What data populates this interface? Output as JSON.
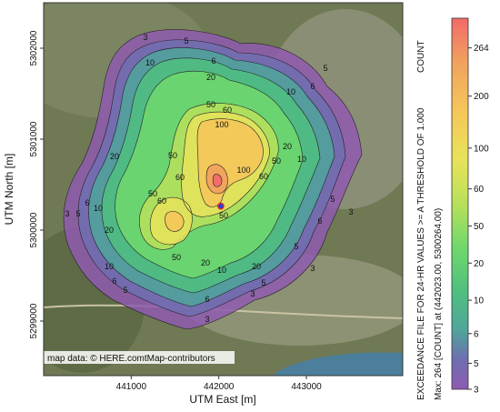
{
  "chart_data": {
    "type": "heatmap",
    "title": "",
    "xlabel": "UTM East [m]",
    "ylabel": "UTM North [m]",
    "x_ticks": [
      "441000",
      "442000",
      "443000"
    ],
    "y_ticks": [
      "5302000",
      "5301000",
      "5300000",
      "5299000"
    ],
    "xlim": [
      440000,
      444100
    ],
    "ylim": [
      5298400,
      5302500
    ],
    "contour_levels": [
      3,
      5,
      6,
      10,
      20,
      50,
      60,
      100,
      200,
      264
    ],
    "contour_labels": [
      "3",
      "5",
      "6",
      "10",
      "20",
      "50",
      "60",
      "100"
    ],
    "colorbar": {
      "title": "COUNT",
      "ticks": [
        "264",
        "200",
        "100",
        "60",
        "50",
        "20",
        "10",
        "6",
        "5",
        "3"
      ],
      "colors": [
        "#f26a6a",
        "#f0a25e",
        "#f5c65a",
        "#e8e35a",
        "#b8e05a",
        "#6ed86c",
        "#4fbf80",
        "#4fa59a",
        "#6e6fb0",
        "#8f5ab0"
      ]
    },
    "side_caption": "EXCEEDANCE FILE FOR 24-HR VALUES >= A THRESHOLD OF 1.000",
    "max_text": "Max:  264  [COUNT]  at  (442023.00, 5300264.00)",
    "max_point": {
      "x": 442023,
      "y": 5300264,
      "value": 264
    },
    "attribution": "map data: © HERE.comtMap-contributors",
    "grid": false
  }
}
